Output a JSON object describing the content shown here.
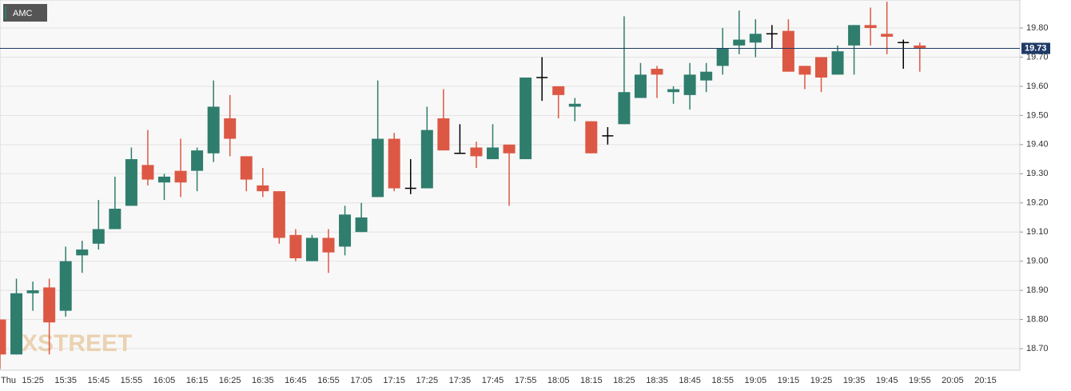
{
  "chart_data": {
    "type": "candlestick",
    "legend": "AMC",
    "watermark": "XSTREET",
    "categories": [
      "Thu",
      null,
      "15:25",
      null,
      "15:35",
      null,
      "15:45",
      null,
      "15:55",
      null,
      "16:05",
      null,
      "16:15",
      null,
      "16:25",
      null,
      "16:35",
      null,
      "16:45",
      null,
      "16:55",
      null,
      "17:05",
      null,
      "17:15",
      null,
      "17:25",
      null,
      "17:35",
      null,
      "17:45",
      null,
      "17:55",
      null,
      "18:05",
      null,
      "18:15",
      null,
      "18:25",
      null,
      "18:35",
      null,
      "18:45",
      null,
      "18:55",
      null,
      "19:05",
      null,
      "19:15",
      null,
      "19:25",
      null,
      "19:35",
      null,
      "19:45",
      null,
      "19:55",
      null,
      "20:05",
      null,
      "20:15"
    ],
    "open": [
      18.8,
      18.68,
      18.89,
      18.91,
      18.83,
      19.02,
      19.06,
      19.11,
      19.19,
      19.33,
      19.27,
      19.31,
      19.31,
      19.37,
      19.49,
      19.36,
      19.26,
      19.24,
      19.09,
      19.0,
      19.08,
      19.05,
      19.1,
      19.22,
      19.42,
      19.25,
      19.25,
      19.49,
      19.37,
      19.39,
      19.35,
      19.4,
      19.35,
      19.63,
      19.6,
      19.53,
      19.48,
      19.43,
      19.47,
      19.56,
      19.66,
      19.58,
      19.57,
      19.62,
      19.67,
      19.74,
      19.75,
      19.78,
      19.79,
      19.67,
      19.7,
      19.64,
      19.74,
      19.81,
      19.78,
      19.75,
      19.74,
      null,
      null,
      null,
      null
    ],
    "high": [
      18.8,
      18.94,
      18.93,
      18.94,
      19.05,
      19.07,
      19.21,
      19.29,
      19.39,
      19.45,
      19.3,
      19.42,
      19.39,
      19.62,
      19.57,
      19.36,
      19.32,
      19.24,
      19.11,
      19.09,
      19.11,
      19.19,
      19.2,
      19.62,
      19.44,
      19.35,
      19.53,
      19.59,
      19.47,
      19.41,
      19.47,
      19.4,
      19.63,
      19.7,
      19.6,
      19.56,
      19.48,
      19.46,
      19.84,
      19.68,
      19.67,
      19.6,
      19.68,
      19.68,
      19.8,
      19.86,
      19.83,
      19.81,
      19.83,
      19.67,
      19.7,
      19.74,
      19.81,
      19.87,
      19.89,
      19.76,
      19.75,
      null,
      null,
      null,
      null
    ],
    "low": [
      18.63,
      18.68,
      18.83,
      18.68,
      18.81,
      18.96,
      19.04,
      19.11,
      19.19,
      19.26,
      19.21,
      19.22,
      19.24,
      19.34,
      19.36,
      19.24,
      19.22,
      19.06,
      19.0,
      19.0,
      18.96,
      19.02,
      19.1,
      19.22,
      19.24,
      19.23,
      19.25,
      19.38,
      19.37,
      19.32,
      19.35,
      19.19,
      19.35,
      19.55,
      19.49,
      19.48,
      19.37,
      19.4,
      19.47,
      19.56,
      19.56,
      19.54,
      19.52,
      19.58,
      19.64,
      19.71,
      19.7,
      19.73,
      19.65,
      19.59,
      19.58,
      19.64,
      19.64,
      19.74,
      19.71,
      19.66,
      19.65,
      null,
      null,
      null,
      null
    ],
    "close": [
      18.68,
      18.89,
      18.9,
      18.79,
      19.0,
      19.04,
      19.11,
      19.18,
      19.35,
      19.28,
      19.29,
      19.27,
      19.38,
      19.53,
      19.42,
      19.28,
      19.24,
      19.08,
      19.01,
      19.08,
      19.03,
      19.16,
      19.15,
      19.42,
      19.25,
      19.25,
      19.45,
      19.38,
      19.37,
      19.36,
      19.39,
      19.37,
      19.63,
      19.63,
      19.57,
      19.54,
      19.37,
      19.43,
      19.58,
      19.64,
      19.64,
      19.59,
      19.64,
      19.65,
      19.73,
      19.76,
      19.78,
      19.78,
      19.65,
      19.64,
      19.63,
      19.72,
      19.81,
      19.8,
      19.77,
      19.75,
      19.73,
      null,
      null,
      null,
      null
    ],
    "colors": {
      "up": "#2f7d6d",
      "down": "#dc5844",
      "flat": "#000000"
    },
    "last_price": 19.73,
    "last_price_color": "#1e3a66",
    "ylim": [
      18.626,
      19.896
    ],
    "yticks": [
      {
        "value": 18.7,
        "label": "18.70"
      },
      {
        "value": 18.8,
        "label": "18.80"
      },
      {
        "value": 18.9,
        "label": "18.90"
      },
      {
        "value": 19.0,
        "label": "19.00"
      },
      {
        "value": 19.1,
        "label": "19.10"
      },
      {
        "value": 19.2,
        "label": "19.20"
      },
      {
        "value": 19.3,
        "label": "19.30"
      },
      {
        "value": 19.4,
        "label": "19.40"
      },
      {
        "value": 19.5,
        "label": "19.50"
      },
      {
        "value": 19.6,
        "label": "19.60"
      },
      {
        "value": 19.7,
        "label": "19.70"
      },
      {
        "value": 19.8,
        "label": "19.80"
      }
    ],
    "grid": true
  }
}
